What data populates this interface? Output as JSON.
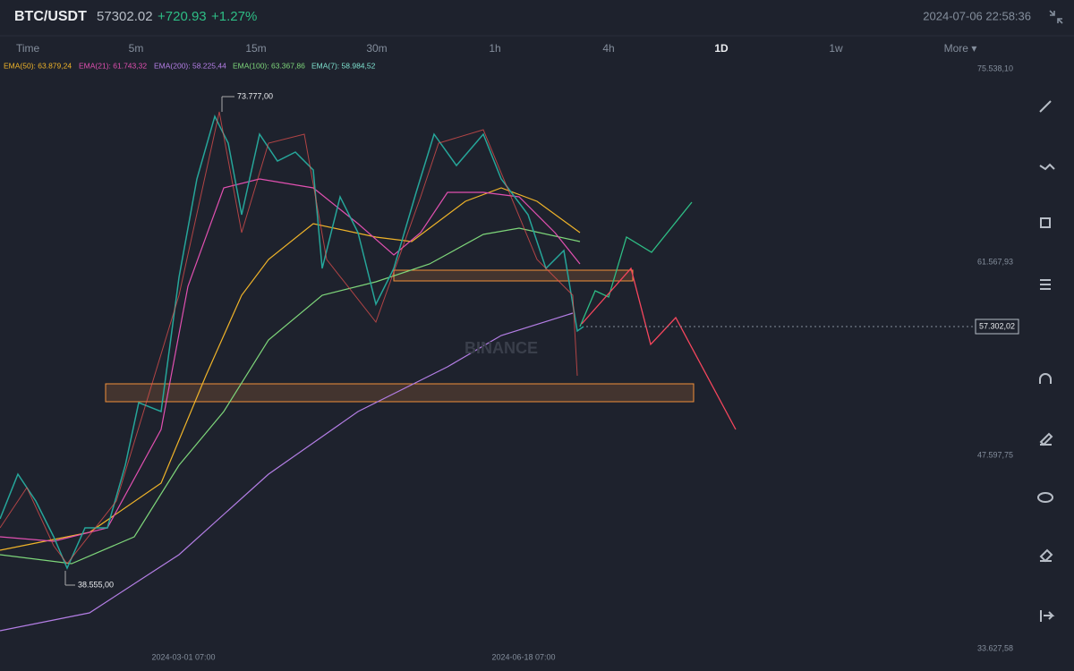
{
  "header": {
    "symbol": "BTC/USDT",
    "price": "57302.02",
    "change": "+720.93",
    "change_percent": "+1.27%",
    "datetime": "2024-07-06 22:58:36"
  },
  "timeframes": [
    "Time",
    "5m",
    "15m",
    "30m",
    "1h",
    "4h",
    "1D",
    "1w",
    "More ▾"
  ],
  "indicators": [
    "EMA(50): 63.879,24",
    "EMA(21): 61.743,32",
    "EMA(200): 58.225,44",
    "EMA(100): 63.367,86",
    "EMA(7): 58.984,52"
  ],
  "price_axis": [
    "75.538,10",
    "61.567,93",
    "47.597,75",
    "33.627,58"
  ],
  "current_price": "57.302,02",
  "annotations": {
    "high": "73.777,00",
    "low": "38.555,00"
  },
  "date_axis": [
    "2024-03-01 07:00",
    "2024-06-18 07:00"
  ],
  "watermark": "BINANCE"
}
